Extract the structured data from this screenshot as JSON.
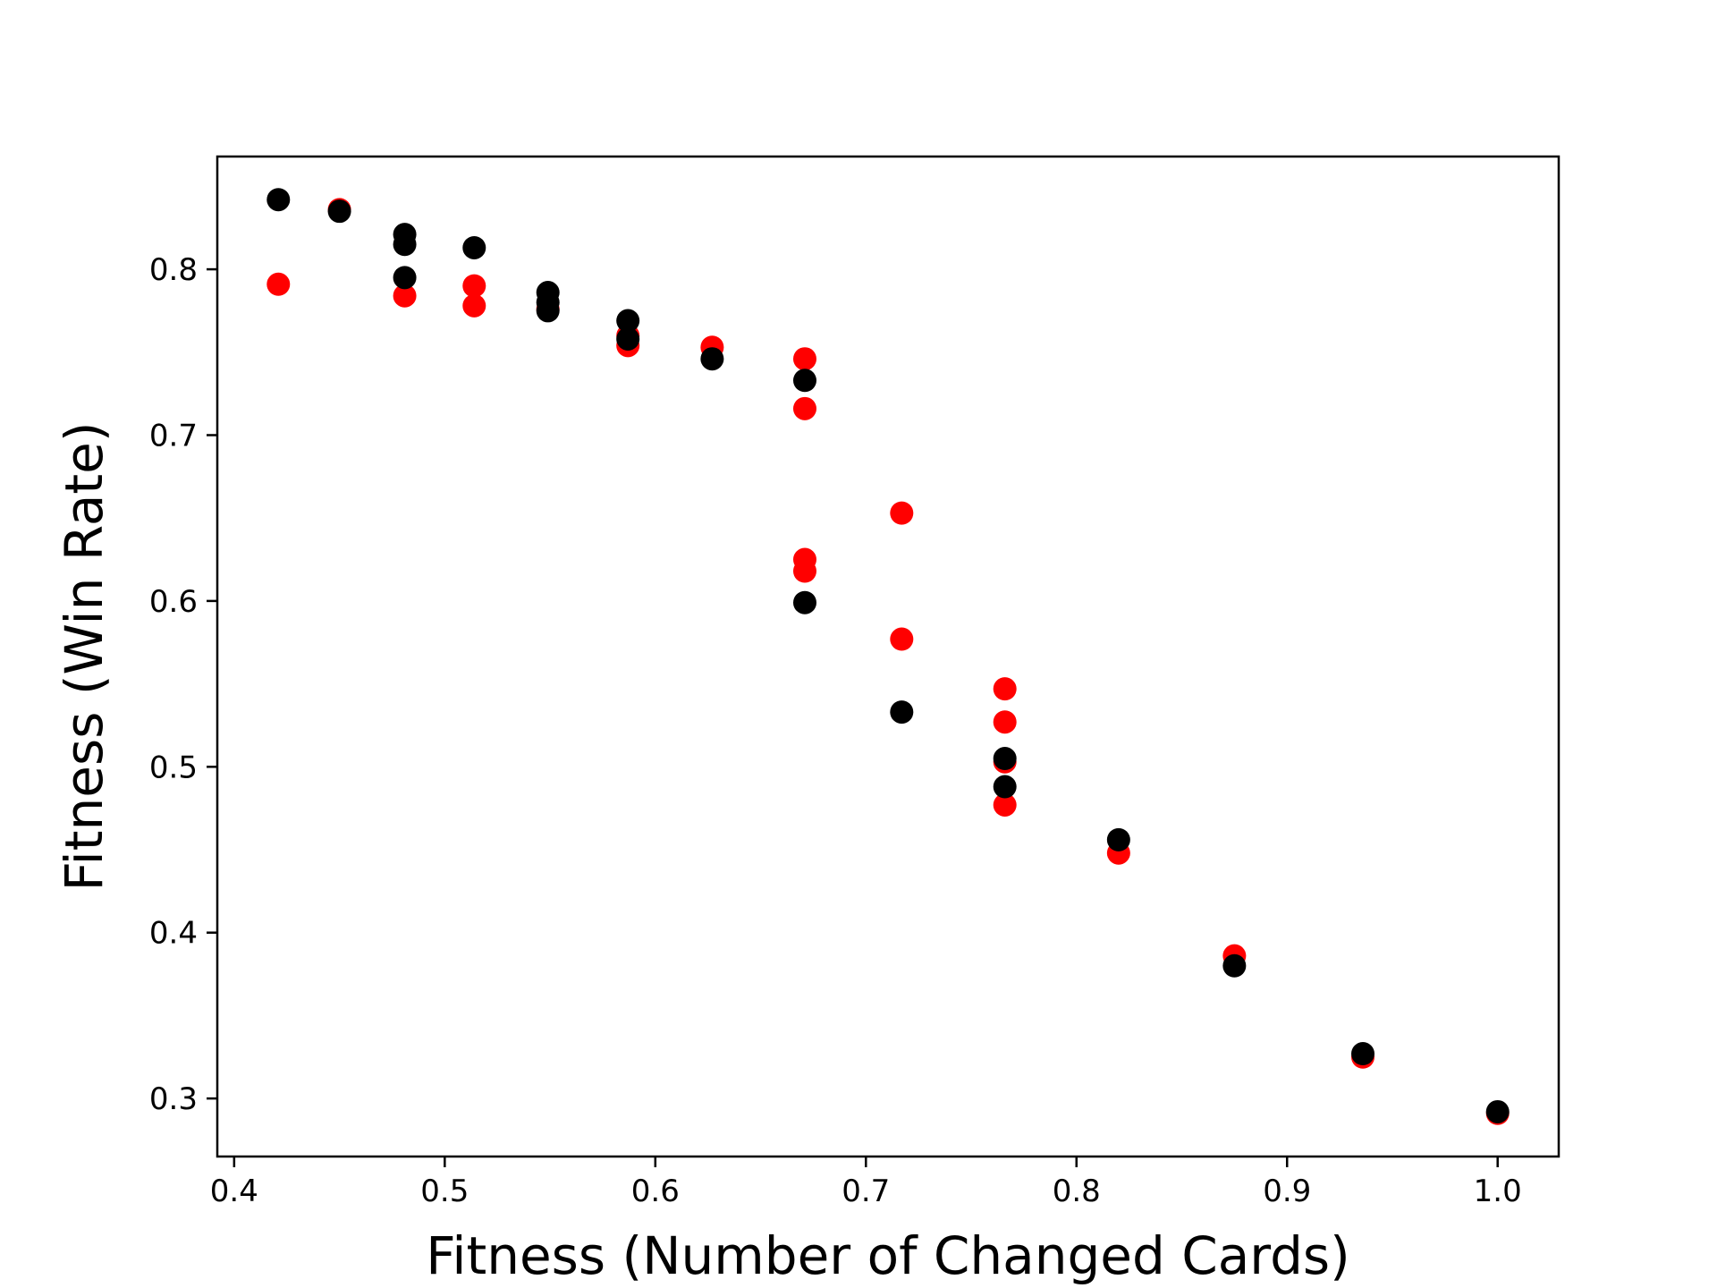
{
  "chart_data": {
    "type": "scatter",
    "title": "",
    "xlabel": "Fitness (Number of Changed Cards)",
    "ylabel": "Fitness (Win Rate)",
    "xlim": [
      0.392,
      1.029
    ],
    "ylim": [
      0.265,
      0.868
    ],
    "xticks": [
      0.4,
      0.5,
      0.6,
      0.7,
      0.8,
      0.9,
      1.0
    ],
    "xtick_labels": [
      "0.4",
      "0.5",
      "0.6",
      "0.7",
      "0.8",
      "0.9",
      "1.0"
    ],
    "yticks": [
      0.3,
      0.4,
      0.5,
      0.6,
      0.7,
      0.8
    ],
    "ytick_labels": [
      "0.3",
      "0.4",
      "0.5",
      "0.6",
      "0.7",
      "0.8"
    ],
    "grid": false,
    "legend": "none",
    "series": [
      {
        "color": "#ff0000",
        "x": [
          0.421,
          0.45,
          0.481,
          0.514,
          0.514,
          0.549,
          0.587,
          0.587,
          0.627,
          0.671,
          0.671,
          0.671,
          0.671,
          0.717,
          0.717,
          0.766,
          0.766,
          0.766,
          0.766,
          0.82,
          0.875,
          0.936,
          1.0
        ],
        "y": [
          0.791,
          0.836,
          0.784,
          0.79,
          0.778,
          0.776,
          0.754,
          0.76,
          0.753,
          0.746,
          0.716,
          0.625,
          0.618,
          0.653,
          0.577,
          0.547,
          0.527,
          0.503,
          0.477,
          0.448,
          0.386,
          0.325,
          0.291
        ]
      },
      {
        "color": "#000000",
        "x": [
          0.421,
          0.45,
          0.481,
          0.481,
          0.481,
          0.514,
          0.549,
          0.549,
          0.549,
          0.587,
          0.587,
          0.627,
          0.671,
          0.671,
          0.717,
          0.766,
          0.766,
          0.82,
          0.875,
          0.936,
          1.0
        ],
        "y": [
          0.842,
          0.835,
          0.821,
          0.815,
          0.795,
          0.813,
          0.786,
          0.78,
          0.775,
          0.769,
          0.758,
          0.746,
          0.733,
          0.599,
          0.533,
          0.505,
          0.488,
          0.456,
          0.38,
          0.327,
          0.292
        ]
      }
    ]
  }
}
